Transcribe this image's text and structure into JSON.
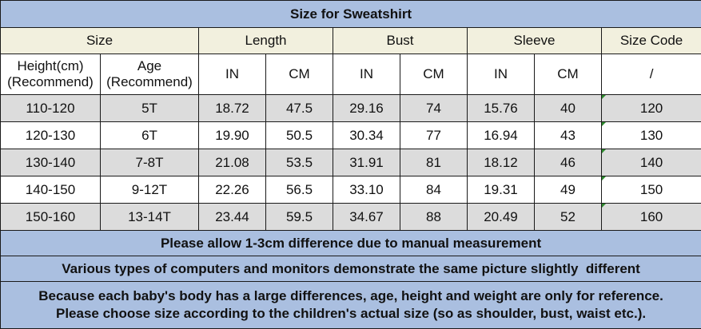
{
  "title": "Size for Sweatshirt",
  "groups": {
    "size": "Size",
    "length": "Length",
    "bust": "Bust",
    "sleeve": "Sleeve",
    "size_code": "Size Code"
  },
  "subheaders": {
    "height": "Height(cm)\n(Recommend)",
    "age": "Age\n(Recommend)",
    "length_in": "IN",
    "length_cm": "CM",
    "bust_in": "IN",
    "bust_cm": "CM",
    "sleeve_in": "IN",
    "sleeve_cm": "CM",
    "size_code": "/"
  },
  "rows": [
    {
      "height": "110-120",
      "age": "5T",
      "length_in": "18.72",
      "length_cm": "47.5",
      "bust_in": "29.16",
      "bust_cm": "74",
      "sleeve_in": "15.76",
      "sleeve_cm": "40",
      "size_code": "120"
    },
    {
      "height": "120-130",
      "age": "6T",
      "length_in": "19.90",
      "length_cm": "50.5",
      "bust_in": "30.34",
      "bust_cm": "77",
      "sleeve_in": "16.94",
      "sleeve_cm": "43",
      "size_code": "130"
    },
    {
      "height": "130-140",
      "age": "7-8T",
      "length_in": "21.08",
      "length_cm": "53.5",
      "bust_in": "31.91",
      "bust_cm": "81",
      "sleeve_in": "18.12",
      "sleeve_cm": "46",
      "size_code": "140"
    },
    {
      "height": "140-150",
      "age": "9-12T",
      "length_in": "22.26",
      "length_cm": "56.5",
      "bust_in": "33.10",
      "bust_cm": "84",
      "sleeve_in": "19.31",
      "sleeve_cm": "49",
      "size_code": "150"
    },
    {
      "height": "150-160",
      "age": "13-14T",
      "length_in": "23.44",
      "length_cm": "59.5",
      "bust_in": "34.67",
      "bust_cm": "88",
      "sleeve_in": "20.49",
      "sleeve_cm": "52",
      "size_code": "160"
    }
  ],
  "notes": {
    "note1": "Please allow 1-3cm difference due to manual measurement",
    "note2": "Various types of computers and monitors demonstrate the same picture slightly  different",
    "note3_line1": "Because each baby's body has a large differences, age, height and weight are only for reference.",
    "note3_line2": "Please choose size according to the children's actual size (so as shoulder, bust, waist etc.)."
  },
  "colors": {
    "title_bg": "#aabfe0",
    "header_bg": "#f2f0de",
    "row_shade": "#dcdcdc",
    "border": "#1a1a1a",
    "corner_mark": "#2e8b2e"
  }
}
